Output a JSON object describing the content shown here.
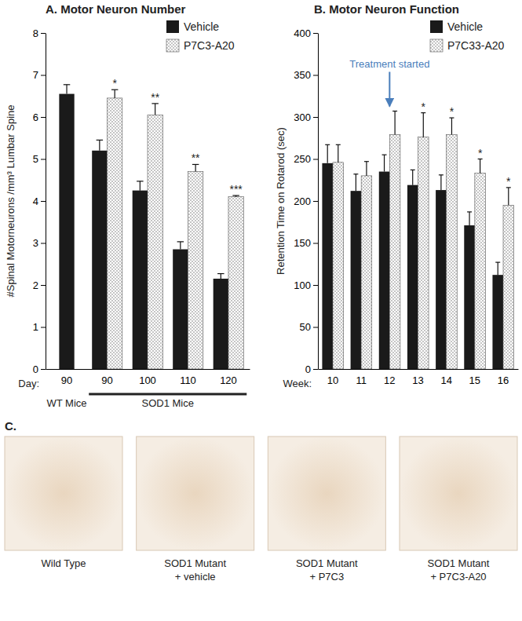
{
  "chart_data": [
    {
      "type": "bar",
      "title": "A. Motor Neuron Number",
      "y_label": "#Spinal Motorneurons /mm³ Lumbar Spine",
      "x_prefix": "Day:",
      "categories": [
        "90",
        "90",
        "100",
        "110",
        "120"
      ],
      "groups": [
        {
          "name": "WT Mice",
          "size": 1
        },
        {
          "name": "SOD1 Mice",
          "size": 4
        }
      ],
      "series": [
        {
          "name": "Vehicle",
          "color": "#1a1a1a",
          "marker": "solid",
          "values": [
            6.55,
            5.2,
            4.25,
            2.85,
            2.15
          ],
          "errors": [
            0.22,
            0.25,
            0.22,
            0.18,
            0.12
          ]
        },
        {
          "name": "P7C3-A20",
          "color": "#6f6f6f",
          "marker": "dots",
          "values": [
            null,
            6.45,
            6.05,
            4.7,
            4.1
          ],
          "errors": [
            null,
            0.2,
            0.27,
            0.17,
            0.03
          ],
          "significance": [
            null,
            "*",
            "**",
            "**",
            "***"
          ]
        }
      ],
      "ylim": [
        0,
        8
      ],
      "yticks": [
        0,
        1,
        2,
        3,
        4,
        5,
        6,
        7,
        8
      ],
      "legend": "top-right"
    },
    {
      "type": "bar",
      "title": "B. Motor Neuron Function",
      "y_label": "Retention Time on Rotarod (sec)",
      "x_prefix": "Week:",
      "categories": [
        "10",
        "11",
        "12",
        "13",
        "14",
        "15",
        "16"
      ],
      "series": [
        {
          "name": "Vehicle",
          "color": "#1a1a1a",
          "marker": "solid",
          "values": [
            245,
            212,
            235,
            219,
            213,
            171,
            112
          ],
          "errors": [
            22,
            20,
            20,
            18,
            18,
            16,
            15
          ]
        },
        {
          "name": "P7C33-A20",
          "color": "#6f6f6f",
          "marker": "dots",
          "values": [
            246,
            230,
            279,
            276,
            279,
            233,
            195
          ],
          "errors": [
            21,
            17,
            28,
            29,
            20,
            17,
            21
          ],
          "significance": [
            null,
            null,
            null,
            "*",
            "*",
            "*",
            "*"
          ]
        }
      ],
      "ylim": [
        0,
        400
      ],
      "yticks": [
        0,
        50,
        100,
        150,
        200,
        250,
        300,
        350,
        400
      ],
      "legend": "top-right",
      "annotations": [
        {
          "text": "Treatment started",
          "category": "12",
          "color": "#4a7ebb"
        }
      ]
    }
  ],
  "image_panel": {
    "label": "C.",
    "captions": [
      [
        "Wild Type"
      ],
      [
        "SOD1 Mutant",
        "+ vehicle"
      ],
      [
        "SOD1 Mutant",
        "+ P7C3"
      ],
      [
        "SOD1 Mutant",
        "+ P7C3-A20"
      ]
    ]
  }
}
